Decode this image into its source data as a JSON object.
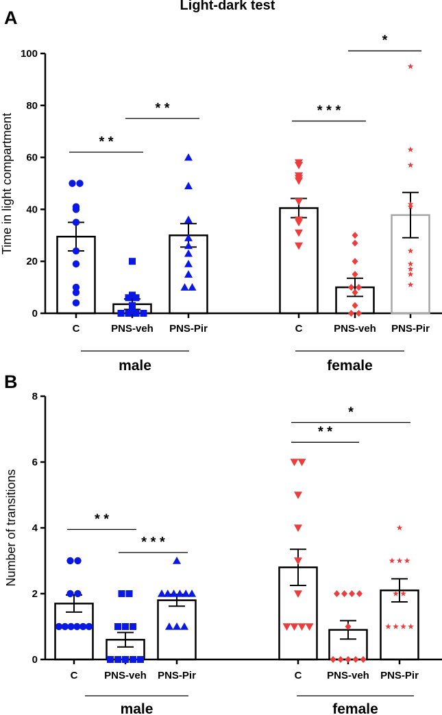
{
  "title": "Light-dark test",
  "colors": {
    "male": "#0a18e6",
    "female": "#ee3b3b",
    "bar": "#000000",
    "bar_gray": "#a6a6a6"
  },
  "chart_data": [
    {
      "panel": "A",
      "type": "bar",
      "ylabel": "Time in light compartment",
      "ylim": [
        0,
        100
      ],
      "yticks": [
        0,
        20,
        40,
        60,
        80,
        100
      ],
      "groups": [
        {
          "label": "male",
          "color": "male",
          "categories": [
            {
              "label": "C",
              "mean": 29.5,
              "sem": 5.5,
              "marker": "circle",
              "points": [
                50,
                50,
                41,
                40,
                35,
                24,
                19,
                10,
                8,
                4
              ]
            },
            {
              "label": "PNS-veh",
              "mean": 3.5,
              "sem": 2.0,
              "marker": "square",
              "points": [
                20,
                7,
                6,
                6,
                3,
                1,
                0,
                0,
                0,
                0
              ]
            },
            {
              "label": "PNS-Pir",
              "mean": 30.0,
              "sem": 4.5,
              "marker": "triangle-up",
              "points": [
                60,
                49,
                36,
                29,
                26,
                23,
                19,
                15,
                10,
                10
              ]
            }
          ]
        },
        {
          "label": "female",
          "color": "female",
          "categories": [
            {
              "label": "C",
              "mean": 40.5,
              "sem": 3.7,
              "marker": "triangle-down",
              "points": [
                58,
                57,
                53,
                52,
                51,
                43,
                36,
                35,
                31,
                26
              ]
            },
            {
              "label": "PNS-veh",
              "mean": 10.0,
              "sem": 3.5,
              "marker": "diamond",
              "points": [
                30,
                27,
                20,
                15,
                10,
                10,
                8,
                3,
                0,
                0
              ]
            },
            {
              "label": "PNS-Pir",
              "mean": 37.8,
              "sem": 8.7,
              "marker": "star",
              "points": [
                95,
                63,
                57,
                42,
                41,
                24,
                19,
                17,
                15,
                11
              ],
              "bar_color": "bar_gray"
            }
          ]
        }
      ],
      "significance": [
        {
          "from": 0,
          "to": 1,
          "y": 62,
          "label": "* *"
        },
        {
          "from": 1,
          "to": 2,
          "y": 75,
          "label": "* *"
        },
        {
          "from": 3,
          "to": 4,
          "y": 74,
          "label": "* * *"
        },
        {
          "from": 4,
          "to": 5,
          "y": 101,
          "label": "*"
        }
      ]
    },
    {
      "panel": "B",
      "type": "bar",
      "ylabel": "Number of transitions",
      "ylim": [
        0,
        8
      ],
      "yticks": [
        0,
        2,
        4,
        6,
        8
      ],
      "groups": [
        {
          "label": "male",
          "color": "male",
          "categories": [
            {
              "label": "C",
              "mean": 1.7,
              "sem": 0.26,
              "marker": "circle",
              "points": [
                3,
                3,
                2,
                2,
                1,
                1,
                1,
                1,
                1,
                1
              ]
            },
            {
              "label": "PNS-veh",
              "mean": 0.6,
              "sem": 0.22,
              "marker": "square",
              "points": [
                2,
                2,
                1,
                1,
                1,
                0,
                0,
                0,
                0,
                0
              ]
            },
            {
              "label": "PNS-Pir",
              "mean": 1.8,
              "sem": 0.18,
              "marker": "triangle-up",
              "points": [
                3,
                2,
                2,
                2,
                2,
                2,
                2,
                1,
                1,
                1
              ]
            }
          ]
        },
        {
          "label": "female",
          "color": "female",
          "categories": [
            {
              "label": "C",
              "mean": 2.8,
              "sem": 0.55,
              "marker": "triangle-down",
              "points": [
                6,
                6,
                5,
                4,
                3,
                2,
                1,
                1,
                1,
                1
              ]
            },
            {
              "label": "PNS-veh",
              "mean": 0.9,
              "sem": 0.28,
              "marker": "diamond",
              "points": [
                2,
                2,
                2,
                2,
                1,
                0,
                0,
                0,
                0,
                0
              ]
            },
            {
              "label": "PNS-Pir",
              "mean": 2.1,
              "sem": 0.35,
              "marker": "star",
              "points": [
                4,
                3,
                3,
                3,
                2,
                2,
                1,
                1,
                1,
                1
              ]
            }
          ]
        }
      ],
      "significance": [
        {
          "from": 0,
          "to": 1,
          "y": 3.95,
          "label": "* *"
        },
        {
          "from": 1,
          "to": 2,
          "y": 3.25,
          "label": "* * *"
        },
        {
          "from": 3,
          "to": 4,
          "y": 6.6,
          "label": "* *"
        },
        {
          "from": 3,
          "to": 5,
          "y": 7.2,
          "label": "*"
        }
      ]
    }
  ]
}
